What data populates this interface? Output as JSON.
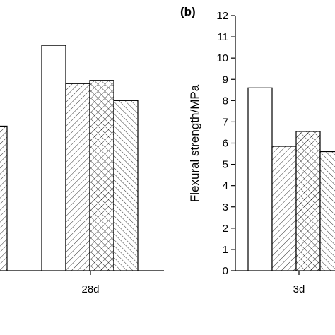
{
  "chart_data": [
    {
      "type": "bar",
      "panel_label": "",
      "categories": [
        "",
        "28d"
      ],
      "ylabel": "",
      "series": [
        {
          "fill": "white",
          "values": [
            null,
            10.6
          ]
        },
        {
          "fill": "hatch-right",
          "values": [
            6.8,
            8.8
          ]
        },
        {
          "fill": "crosshatch",
          "values": [
            null,
            8.95
          ]
        },
        {
          "fill": "hatch-left",
          "values": [
            null,
            8.0
          ]
        }
      ]
    },
    {
      "type": "bar",
      "panel_label": "(b)",
      "categories": [
        "3d"
      ],
      "ylabel": "Flexural strength/MPa",
      "ylim": [
        0,
        12
      ],
      "yticks": [
        "0",
        "1",
        "2",
        "3",
        "4",
        "5",
        "6",
        "7",
        "8",
        "9",
        "10",
        "11",
        "12"
      ],
      "series": [
        {
          "fill": "white",
          "values": [
            8.6
          ]
        },
        {
          "fill": "hatch-right",
          "values": [
            5.85
          ]
        },
        {
          "fill": "crosshatch",
          "values": [
            6.55
          ]
        },
        {
          "fill": "hatch-left",
          "values": [
            5.6
          ]
        }
      ]
    }
  ]
}
